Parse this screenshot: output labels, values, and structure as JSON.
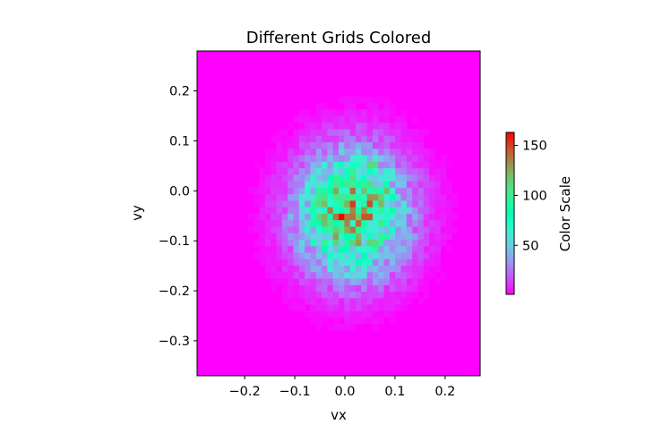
{
  "chart_data": {
    "type": "heatmap",
    "title": "Different Grids Colored",
    "xlabel": "vx",
    "ylabel": "vy",
    "xlim": [
      -0.295,
      0.27
    ],
    "ylim": [
      -0.37,
      0.28
    ],
    "xticks": [
      -0.2,
      -0.1,
      0.0,
      0.1,
      0.2
    ],
    "xtick_labels": [
      "−0.2",
      "−0.1",
      "0.0",
      "0.1",
      "0.2"
    ],
    "yticks": [
      -0.3,
      -0.2,
      -0.1,
      0.0,
      0.1,
      0.2
    ],
    "ytick_labels": [
      "−0.3",
      "−0.2",
      "−0.1",
      "0.0",
      "0.1",
      "0.2"
    ],
    "colormap": "rainbow",
    "colorbar": {
      "label": "Color Scale",
      "min": 1,
      "max": 163,
      "ticks": [
        50,
        100,
        150
      ],
      "tick_labels": [
        "50",
        "100",
        "150"
      ]
    },
    "distribution": {
      "center": [
        0.015,
        -0.045
      ],
      "sigma": [
        0.075,
        0.085
      ],
      "peak": 118
    },
    "hotspots": [
      {
        "x": -0.005,
        "y": -0.052,
        "value": 163
      },
      {
        "x": 0.035,
        "y": -0.052,
        "value": 150
      },
      {
        "x": 0.045,
        "y": -0.052,
        "value": 145
      },
      {
        "x": 0.015,
        "y": 0.005,
        "value": 140
      },
      {
        "x": 0.085,
        "y": 0.005,
        "value": 120
      },
      {
        "x": 0.0,
        "y": -0.065,
        "value": 135
      },
      {
        "x": 0.055,
        "y": 0.055,
        "value": 110
      }
    ]
  }
}
